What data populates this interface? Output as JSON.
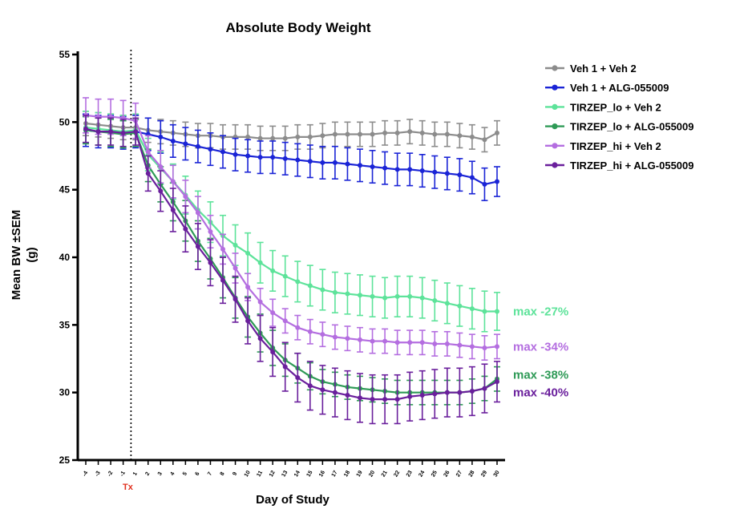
{
  "chart_data": {
    "type": "line",
    "title": "Absolute Body Weight",
    "xlabel": "Day of Study",
    "ylabel": "Mean BW ±SEM",
    "ylabel_unit": "(g)",
    "ylim": [
      25,
      55
    ],
    "yticks": [
      25,
      30,
      35,
      40,
      45,
      50,
      55
    ],
    "x": [
      -4,
      -3,
      -2,
      -1,
      1,
      2,
      3,
      4,
      5,
      6,
      7,
      8,
      9,
      10,
      11,
      12,
      13,
      14,
      15,
      16,
      17,
      18,
      19,
      20,
      21,
      22,
      23,
      24,
      25,
      26,
      27,
      28,
      29,
      30
    ],
    "xtick_labels": [
      "-4",
      "-3",
      "-2",
      "-1",
      "1",
      "2",
      "3",
      "4",
      "5",
      "6",
      "7",
      "8",
      "9",
      "10",
      "11",
      "12",
      "13",
      "14",
      "15",
      "16",
      "17",
      "18",
      "19",
      "20",
      "21",
      "22",
      "23",
      "24",
      "25",
      "26",
      "27",
      "28",
      "29",
      "30"
    ],
    "treatment_marker": {
      "label": "Tx",
      "x": 1,
      "style": "dotted",
      "color": "#e0301e"
    },
    "legend_position": "top-right",
    "grid": false,
    "series": [
      {
        "name": "Veh 1 + Veh 2",
        "color": "#8c8c8c",
        "marker": "circle",
        "values": [
          49.9,
          49.8,
          49.7,
          49.6,
          49.6,
          49.4,
          49.3,
          49.2,
          49.1,
          49.0,
          49.0,
          48.9,
          48.9,
          48.9,
          48.8,
          48.8,
          48.8,
          48.9,
          48.9,
          49.0,
          49.1,
          49.1,
          49.1,
          49.1,
          49.2,
          49.2,
          49.3,
          49.2,
          49.1,
          49.1,
          49.0,
          48.9,
          48.7,
          49.2
        ],
        "sem": [
          0.9,
          0.9,
          0.9,
          0.9,
          0.9,
          0.9,
          0.9,
          0.9,
          0.9,
          0.9,
          0.9,
          0.9,
          0.9,
          0.9,
          0.9,
          0.9,
          0.9,
          0.9,
          0.9,
          0.9,
          0.9,
          0.9,
          0.9,
          0.9,
          0.9,
          0.9,
          0.9,
          0.9,
          0.9,
          0.9,
          0.9,
          0.9,
          0.9,
          0.9
        ]
      },
      {
        "name": "Veh 1 + ALG-055009",
        "color": "#1a24d6",
        "marker": "circle",
        "values": [
          49.4,
          49.3,
          49.3,
          49.2,
          49.3,
          49.1,
          48.9,
          48.6,
          48.4,
          48.2,
          48.0,
          47.8,
          47.6,
          47.5,
          47.4,
          47.4,
          47.3,
          47.2,
          47.1,
          47.0,
          47.0,
          46.9,
          46.8,
          46.7,
          46.6,
          46.5,
          46.5,
          46.4,
          46.3,
          46.2,
          46.1,
          45.9,
          45.4,
          45.6
        ],
        "sem": [
          1.2,
          1.2,
          1.2,
          1.2,
          1.2,
          1.2,
          1.2,
          1.2,
          1.2,
          1.2,
          1.2,
          1.2,
          1.2,
          1.2,
          1.2,
          1.2,
          1.2,
          1.2,
          1.2,
          1.2,
          1.2,
          1.2,
          1.2,
          1.2,
          1.2,
          1.2,
          1.2,
          1.2,
          1.2,
          1.2,
          1.2,
          1.2,
          1.2,
          1.1
        ]
      },
      {
        "name": "TIRZEP_lo + Veh 2",
        "color": "#5de39a",
        "marker": "circle",
        "values": [
          49.6,
          49.5,
          49.4,
          49.3,
          49.4,
          47.6,
          46.6,
          45.6,
          44.6,
          43.5,
          42.6,
          41.6,
          40.9,
          40.3,
          39.6,
          39.0,
          38.6,
          38.2,
          37.9,
          37.6,
          37.4,
          37.3,
          37.2,
          37.1,
          37.0,
          37.1,
          37.1,
          37.0,
          36.8,
          36.6,
          36.4,
          36.2,
          36.0,
          36.0
        ],
        "sem": [
          1.2,
          1.2,
          1.2,
          1.2,
          1.2,
          1.2,
          1.2,
          1.3,
          1.4,
          1.4,
          1.5,
          1.5,
          1.5,
          1.5,
          1.5,
          1.5,
          1.5,
          1.5,
          1.5,
          1.5,
          1.5,
          1.5,
          1.5,
          1.5,
          1.5,
          1.5,
          1.5,
          1.5,
          1.5,
          1.5,
          1.5,
          1.5,
          1.5,
          1.4
        ]
      },
      {
        "name": "TIRZEP_lo + ALG-055009",
        "color": "#2e9a56",
        "marker": "circle",
        "values": [
          49.4,
          49.3,
          49.2,
          49.1,
          49.2,
          46.8,
          45.4,
          44.1,
          42.7,
          41.2,
          39.9,
          38.5,
          37.0,
          35.6,
          34.4,
          33.3,
          32.4,
          31.8,
          31.2,
          30.8,
          30.6,
          30.4,
          30.3,
          30.2,
          30.1,
          30.0,
          30.0,
          30.0,
          30.0,
          30.0,
          30.0,
          30.1,
          30.3,
          31.0
        ],
        "sem": [
          1.0,
          1.0,
          1.0,
          1.0,
          1.0,
          1.2,
          1.3,
          1.4,
          1.5,
          1.5,
          1.5,
          1.5,
          1.5,
          1.5,
          1.4,
          1.3,
          1.2,
          1.1,
          1.0,
          0.9,
          0.9,
          0.9,
          0.9,
          0.9,
          0.9,
          0.9,
          0.9,
          0.9,
          0.9,
          0.9,
          0.9,
          0.9,
          0.9,
          0.9
        ]
      },
      {
        "name": "TIRZEP_hi + Veh 2",
        "color": "#b46ee0",
        "marker": "circle",
        "values": [
          50.5,
          50.4,
          50.4,
          50.3,
          50.1,
          47.8,
          46.7,
          45.6,
          44.5,
          43.3,
          41.9,
          40.6,
          39.2,
          37.8,
          36.7,
          35.9,
          35.3,
          34.8,
          34.5,
          34.3,
          34.1,
          34.0,
          33.9,
          33.8,
          33.8,
          33.7,
          33.7,
          33.7,
          33.6,
          33.6,
          33.5,
          33.4,
          33.3,
          33.4
        ],
        "sem": [
          1.3,
          1.3,
          1.3,
          1.3,
          1.3,
          1.2,
          1.2,
          1.2,
          1.2,
          1.2,
          1.2,
          1.1,
          1.1,
          1.0,
          1.0,
          1.0,
          0.9,
          0.9,
          0.9,
          0.9,
          0.9,
          0.9,
          0.9,
          0.9,
          0.9,
          0.9,
          0.9,
          0.9,
          0.9,
          0.9,
          0.9,
          0.9,
          0.9,
          0.9
        ]
      },
      {
        "name": "TIRZEP_hi + ALG-055009",
        "color": "#6a1f9c",
        "marker": "circle",
        "values": [
          49.5,
          49.3,
          49.3,
          49.2,
          49.3,
          46.2,
          44.9,
          43.5,
          42.1,
          40.8,
          39.6,
          38.3,
          36.9,
          35.3,
          34.0,
          33.0,
          31.9,
          31.1,
          30.5,
          30.2,
          30.0,
          29.8,
          29.6,
          29.5,
          29.5,
          29.5,
          29.7,
          29.8,
          29.9,
          30.0,
          30.0,
          30.1,
          30.3,
          30.8
        ],
        "sem": [
          1.0,
          1.0,
          1.0,
          1.0,
          1.0,
          1.3,
          1.5,
          1.6,
          1.7,
          1.7,
          1.7,
          1.7,
          1.7,
          1.7,
          1.7,
          1.8,
          1.8,
          1.8,
          1.8,
          1.8,
          1.8,
          1.8,
          1.8,
          1.8,
          1.8,
          1.8,
          1.8,
          1.8,
          1.8,
          1.8,
          1.8,
          1.8,
          1.8,
          1.5
        ]
      }
    ],
    "annotations": [
      {
        "text": "max -27%",
        "series": "TIRZEP_lo + Veh 2",
        "y": 36.0,
        "color": "#5de39a"
      },
      {
        "text": "max -34%",
        "series": "TIRZEP_hi + Veh 2",
        "y": 33.4,
        "color": "#b46ee0"
      },
      {
        "text": "max -38%",
        "series": "TIRZEP_lo + ALG-055009",
        "y": 31.3,
        "color": "#2e9a56"
      },
      {
        "text": "max -40%",
        "series": "TIRZEP_hi + ALG-055009",
        "y": 30.0,
        "color": "#6a1f9c"
      }
    ]
  }
}
